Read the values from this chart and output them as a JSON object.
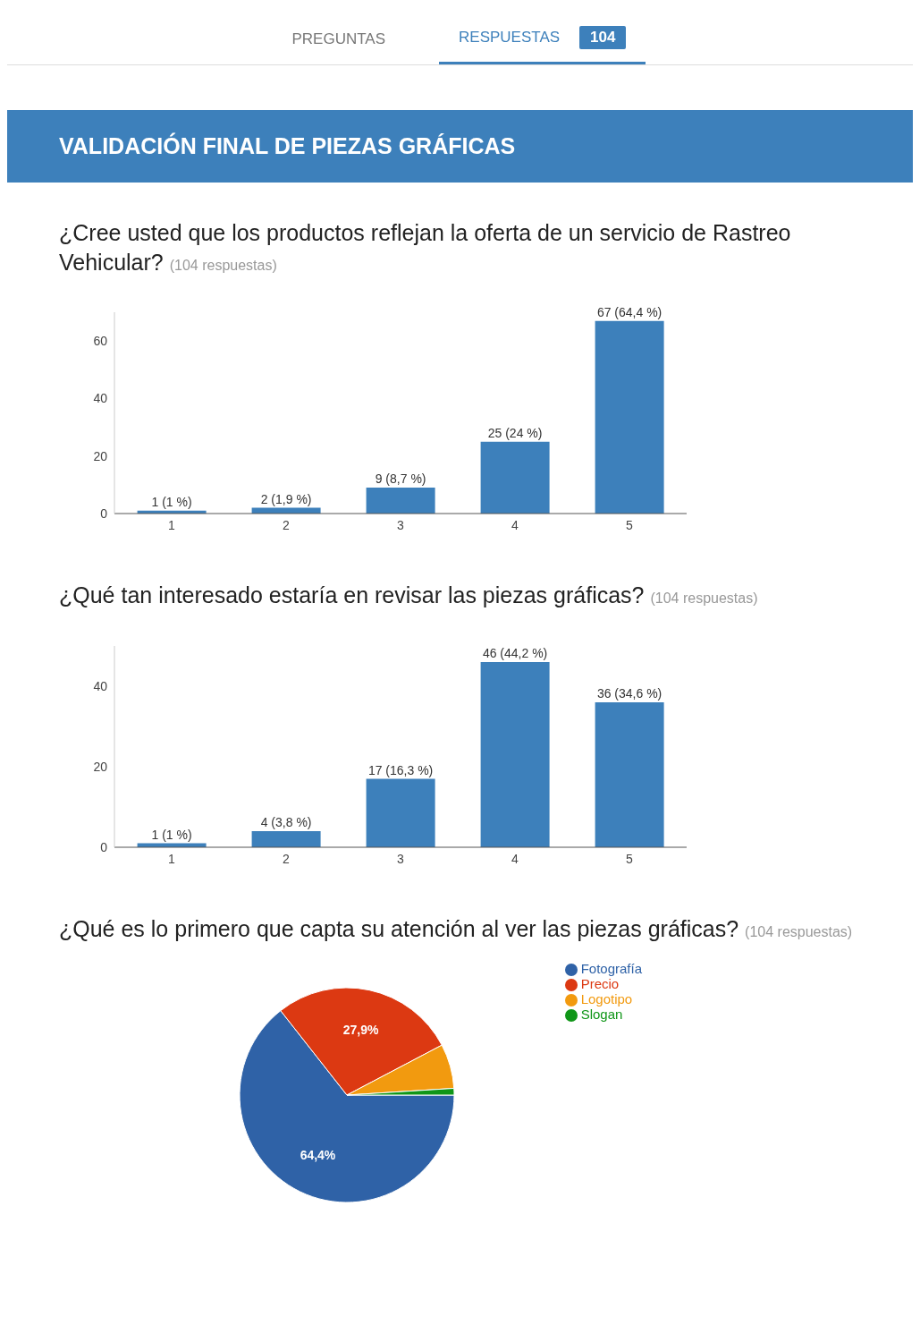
{
  "chart_data": [
    {
      "type": "other",
      "title": "VALIDACIÓN FINAL DE PIEZAS GRÁFICAS",
      "annotations": [
        "PREGUNTAS",
        "RESPUESTAS",
        "104"
      ]
    },
    {
      "type": "bar",
      "title": "¿Cree usted que los productos reflejan la oferta de un servicio de Rastreo Vehicular?",
      "subtitle": "(104 respuestas)",
      "categories": [
        "1",
        "2",
        "3",
        "4",
        "5"
      ],
      "values": [
        1,
        2,
        9,
        25,
        67
      ],
      "value_labels": [
        "1 (1 %)",
        "2 (1,9 %)",
        "9 (8,7 %)",
        "25 (24 %)",
        "67 (64,4 %)"
      ],
      "color": "#3d80bb",
      "ylim": [
        0,
        70
      ],
      "yticks": [
        0,
        20,
        40,
        60
      ]
    },
    {
      "type": "bar",
      "title": "¿Qué tan interesado estaría en revisar las piezas gráficas?",
      "subtitle": "(104 respuestas)",
      "categories": [
        "1",
        "2",
        "3",
        "4",
        "5"
      ],
      "values": [
        1,
        4,
        17,
        46,
        36
      ],
      "value_labels": [
        "1 (1 %)",
        "4 (3,8 %)",
        "17 (16,3 %)",
        "46 (44,2 %)",
        "36 (34,6 %)"
      ],
      "color": "#3d80bb",
      "ylim": [
        0,
        50
      ],
      "yticks": [
        0,
        20,
        40
      ]
    },
    {
      "type": "pie",
      "title": "¿Qué es lo primero que capta su atención al ver las piezas gráficas?",
      "subtitle": "(104 respuestas)",
      "categories": [
        "Fotografía",
        "Precio",
        "Logotipo",
        "Slogan"
      ],
      "values": [
        64.4,
        27.9,
        6.7,
        1.0
      ],
      "value_labels": [
        "64,4%",
        "27,9%",
        null,
        null
      ],
      "colors": [
        "#2f62a7",
        "#dc3912",
        "#f29a0f",
        "#109618"
      ],
      "legend": "right"
    }
  ]
}
